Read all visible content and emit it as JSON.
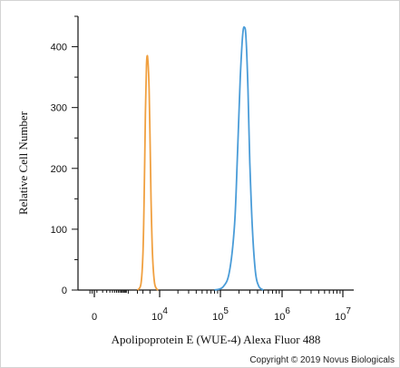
{
  "chart_data": {
    "type": "line",
    "title": "",
    "xlabel": "Apolipoprotein E (WUE-4) Alexa Fluor 488",
    "ylabel": "Relative Cell Number",
    "x_scale": "biexponential",
    "xlim": [
      -500,
      10000000
    ],
    "ylim": [
      0,
      450
    ],
    "x_ticks": [
      {
        "value": 0,
        "base": "0",
        "exp": ""
      },
      {
        "value": 10000,
        "base": "10",
        "exp": "4"
      },
      {
        "value": 100000,
        "base": "10",
        "exp": "5"
      },
      {
        "value": 1000000,
        "base": "10",
        "exp": "6"
      },
      {
        "value": 10000000,
        "base": "10",
        "exp": "7"
      }
    ],
    "y_ticks": [
      0,
      100,
      200,
      300,
      400
    ],
    "grid": false,
    "legend": "none",
    "series": [
      {
        "color": "#f0a040",
        "x": [
          2000,
          2600,
          3000,
          3300,
          3600,
          3900,
          4100,
          4300,
          4500,
          4700,
          5000,
          5400,
          6000,
          6800,
          7800,
          9000
        ],
        "y": [
          0,
          10,
          60,
          160,
          290,
          370,
          385,
          378,
          360,
          330,
          260,
          150,
          60,
          15,
          3,
          0
        ]
      },
      {
        "color": "#4a9cd8",
        "x": [
          80000,
          110000,
          140000,
          170000,
          190000,
          210000,
          230000,
          245000,
          260000,
          280000,
          300000,
          330000,
          370000,
          420000,
          500000
        ],
        "y": [
          0,
          5,
          30,
          110,
          230,
          350,
          420,
          432,
          415,
          330,
          210,
          100,
          30,
          6,
          0
        ]
      }
    ]
  },
  "copyright": "Copyright © 2019 Novus Biologicals"
}
